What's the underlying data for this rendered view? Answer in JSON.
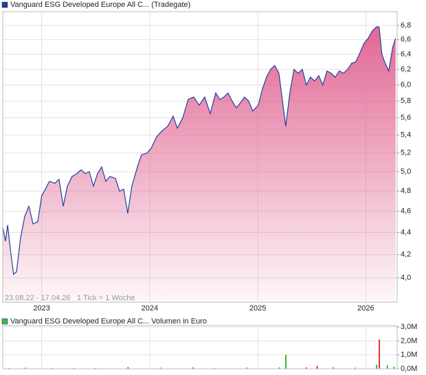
{
  "chart_data": [
    {
      "type": "area",
      "title": "Vanguard ESG Developed Europe All C... (Tradegate)",
      "date_range": "23.08.22 - 17.04.26",
      "tick_note": "1 Tick = 1 Woche",
      "log_scale": true,
      "grid": true,
      "color": "#1f3f9f",
      "fill_color": "#e0608f",
      "xlim": [
        2022.64,
        2026.29
      ],
      "xticks": [
        2023,
        2024,
        2025,
        2026
      ],
      "ylim": [
        3.8,
        7.0
      ],
      "yticks": [
        {
          "value": 4.0,
          "label": "4,0"
        },
        {
          "value": 4.2,
          "label": "4,2"
        },
        {
          "value": 4.4,
          "label": "4,4"
        },
        {
          "value": 4.6,
          "label": "4,6"
        },
        {
          "value": 4.8,
          "label": "4,8"
        },
        {
          "value": 5.0,
          "label": "5,0"
        },
        {
          "value": 5.2,
          "label": "5,2"
        },
        {
          "value": 5.4,
          "label": "5,4"
        },
        {
          "value": 5.6,
          "label": "5,6"
        },
        {
          "value": 5.8,
          "label": "5,8"
        },
        {
          "value": 6.0,
          "label": "6,0"
        },
        {
          "value": 6.2,
          "label": "6,2"
        },
        {
          "value": 6.4,
          "label": "6,4"
        },
        {
          "value": 6.6,
          "label": "6,6"
        },
        {
          "value": 6.8,
          "label": "6,8"
        }
      ],
      "x": [
        2022.64,
        2022.665,
        2022.685,
        2022.71,
        2022.74,
        2022.767,
        2022.805,
        2022.843,
        2022.882,
        2022.92,
        2022.964,
        2023.0,
        2023.034,
        2023.072,
        2023.123,
        2023.161,
        2023.2,
        2023.238,
        2023.282,
        2023.327,
        2023.365,
        2023.403,
        2023.441,
        2023.479,
        2023.517,
        2023.555,
        2023.594,
        2023.632,
        2023.683,
        2023.721,
        2023.759,
        2023.797,
        2023.835,
        2023.886,
        2023.924,
        2023.975,
        2024.013,
        2024.064,
        2024.115,
        2024.166,
        2024.217,
        2024.255,
        2024.306,
        2024.356,
        2024.407,
        2024.458,
        2024.509,
        2024.56,
        2024.611,
        2024.649,
        2024.687,
        2024.725,
        2024.763,
        2024.801,
        2024.84,
        2024.878,
        2024.916,
        2024.954,
        2025.005,
        2025.043,
        2025.081,
        2025.119,
        2025.157,
        2025.196,
        2025.234,
        2025.259,
        2025.297,
        2025.335,
        2025.374,
        2025.412,
        2025.45,
        2025.488,
        2025.526,
        2025.564,
        2025.602,
        2025.641,
        2025.679,
        2025.717,
        2025.755,
        2025.793,
        2025.831,
        2025.869,
        2025.908,
        2025.946,
        2025.984,
        2026.022,
        2026.06,
        2026.098,
        2026.123,
        2026.149,
        2026.174,
        2026.212,
        2026.25,
        2026.276
      ],
      "values": [
        4.45,
        4.32,
        4.47,
        4.25,
        4.03,
        4.05,
        4.35,
        4.55,
        4.65,
        4.48,
        4.5,
        4.75,
        4.82,
        4.9,
        4.88,
        4.92,
        4.65,
        4.85,
        4.95,
        4.98,
        5.02,
        4.98,
        5.0,
        4.85,
        4.98,
        5.05,
        4.9,
        4.95,
        4.93,
        4.8,
        4.82,
        4.58,
        4.85,
        5.05,
        5.18,
        5.2,
        5.25,
        5.38,
        5.45,
        5.5,
        5.62,
        5.48,
        5.6,
        5.82,
        5.85,
        5.75,
        5.85,
        5.65,
        5.9,
        5.82,
        5.85,
        5.9,
        5.8,
        5.72,
        5.78,
        5.85,
        5.8,
        5.68,
        5.75,
        5.95,
        6.1,
        6.2,
        6.25,
        6.15,
        5.75,
        5.5,
        5.9,
        6.2,
        6.15,
        6.2,
        6.0,
        6.1,
        6.05,
        6.12,
        6.0,
        6.18,
        6.15,
        6.1,
        6.18,
        6.15,
        6.2,
        6.28,
        6.3,
        6.42,
        6.55,
        6.62,
        6.72,
        6.78,
        6.78,
        6.4,
        6.3,
        6.18,
        6.5,
        6.62
      ]
    },
    {
      "type": "bar",
      "title": "Vanguard ESG Developed Europe All C... Volumen in Euro",
      "color": "#3cb34a",
      "grid": true,
      "xlim": [
        2022.64,
        2026.29
      ],
      "xticks": [
        2023,
        2024,
        2025,
        2026
      ],
      "ylim": [
        0,
        3100000
      ],
      "yticks": [
        {
          "value": 0,
          "label": "0,0M"
        },
        {
          "value": 1000000,
          "label": "1,0M"
        },
        {
          "value": 2000000,
          "label": "2,0M"
        },
        {
          "value": 3000000,
          "label": "3,0M"
        }
      ],
      "x": [
        2022.7,
        2022.85,
        2023.1,
        2023.3,
        2023.5,
        2023.8,
        2024.1,
        2024.4,
        2024.6,
        2024.9,
        2025.2,
        2025.26,
        2025.45,
        2025.55,
        2025.7,
        2025.9,
        2026.1,
        2026.125,
        2026.2,
        2026.26
      ],
      "values": [
        50000,
        80000,
        50000,
        60000,
        50000,
        120000,
        80000,
        100000,
        60000,
        90000,
        100000,
        1000000,
        100000,
        200000,
        120000,
        80000,
        300000,
        2100000,
        250000,
        150000
      ],
      "colors": [
        "#33bb33",
        "#33bb33",
        "#dd3333",
        "#33bb33",
        "#33bb33",
        "#dd3333",
        "#33bb33",
        "#dd3333",
        "#33bb33",
        "#33bb33",
        "#33bb33",
        "#33bb33",
        "#dd3333",
        "#dd3333",
        "#33bb33",
        "#33bb33",
        "#33bb33",
        "#dd3333",
        "#33bb33",
        "#33bb33"
      ]
    }
  ]
}
